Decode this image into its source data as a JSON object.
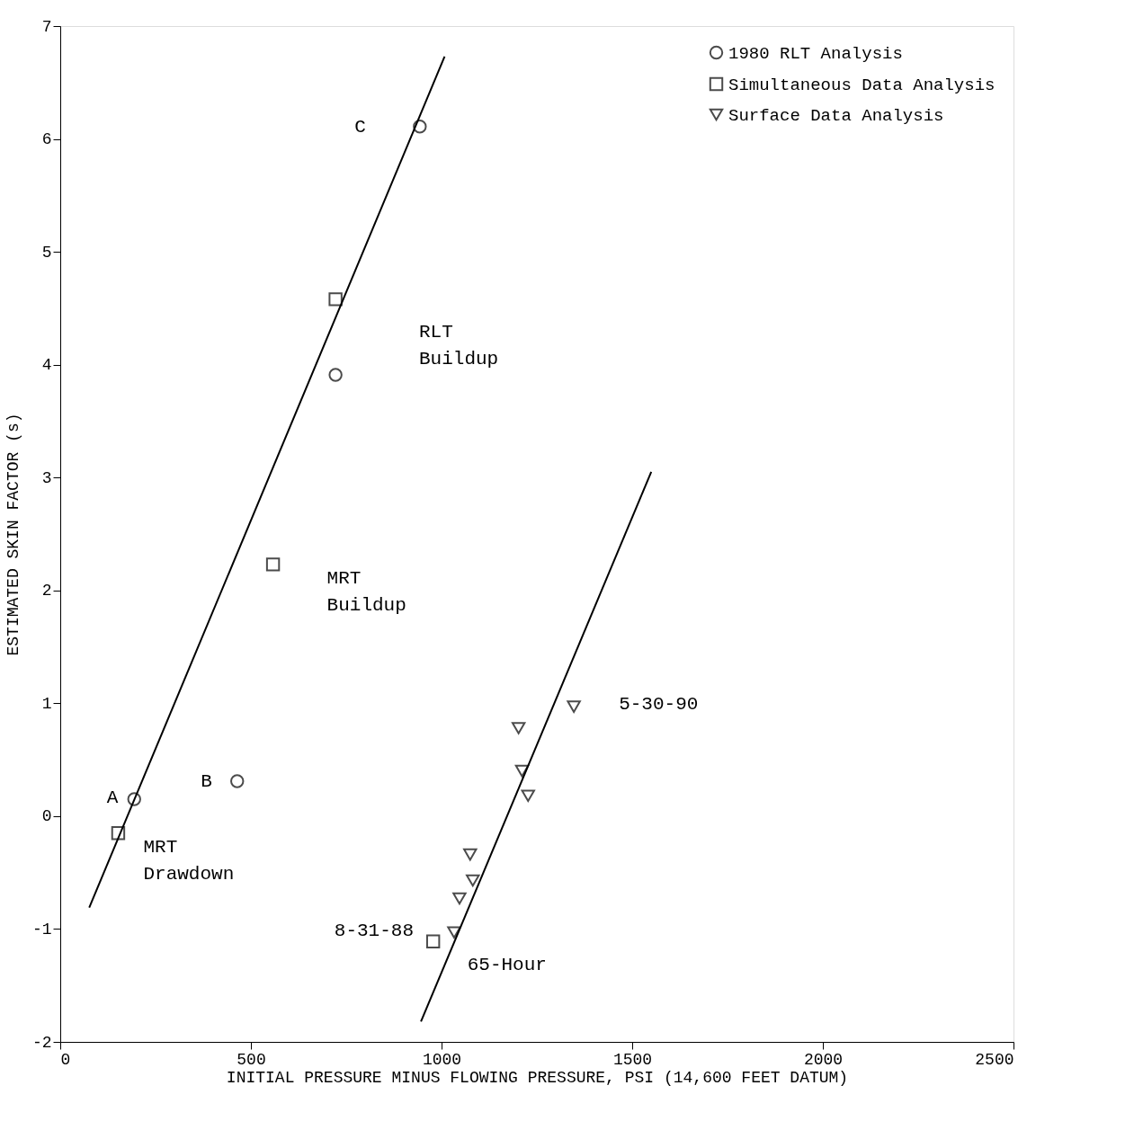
{
  "chart_data": {
    "type": "scatter",
    "xlabel": "INITIAL PRESSURE MINUS FLOWING PRESSURE, PSI (14,600 FEET DATUM)",
    "ylabel": "ESTIMATED SKIN FACTOR (s)",
    "xlim": [
      0,
      2500
    ],
    "xticks": [
      0,
      500,
      1000,
      1500,
      2000,
      2500
    ],
    "ylim": [
      -2,
      7
    ],
    "yticks": [
      -2,
      -1,
      0,
      1,
      2,
      3,
      4,
      5,
      6,
      7
    ],
    "grid": false,
    "legend": "top right",
    "series": [
      {
        "name": "1980 RLT Analysis",
        "color": "#000000",
        "marker": "circle",
        "x": [
          194,
          464,
          722,
          943
        ],
        "values": [
          0.15,
          0.31,
          3.91,
          6.11
        ]
      },
      {
        "name": "Simultaneous Data Analysis",
        "color": "#000000",
        "marker": "square",
        "x": [
          152,
          558,
          722,
          978
        ],
        "values": [
          -0.15,
          2.23,
          4.58,
          -1.11
        ]
      },
      {
        "name": "Surface Data Analysis",
        "color": "#000000",
        "marker": "triangle",
        "x": [
          1202,
          1347,
          1211,
          1227,
          1075,
          1082,
          1047,
          1033
        ],
        "values": [
          0.78,
          0.97,
          0.4,
          0.18,
          -0.34,
          -0.57,
          -0.73,
          -1.03
        ]
      },
      {
        "type": "line",
        "color": "#000000",
        "x": [
          76,
          1008
        ],
        "values": [
          -0.81,
          6.73
        ]
      },
      {
        "type": "line",
        "color": "#000000",
        "x": [
          946,
          1550
        ],
        "values": [
          -1.82,
          3.05
        ]
      }
    ],
    "annotations": [
      {
        "text": "C",
        "x": 943,
        "y": 6.11
      },
      {
        "text": "A",
        "x": 194,
        "y": 0.15
      },
      {
        "text": "B",
        "x": 464,
        "y": 0.31
      },
      {
        "text": "MRT\nDrawdown",
        "x": 152,
        "y": -0.15
      },
      {
        "text": "MRT\nBuildup",
        "x": 558,
        "y": 2.23
      },
      "RLT\nBuildup",
      {
        "text": "8-31-88",
        "x": 1033,
        "y": -1.03
      },
      {
        "text": "65-Hour",
        "x": 978,
        "y": -1.11
      },
      {
        "text": "5-30-90",
        "x": 1347,
        "y": 0.97
      }
    ]
  }
}
